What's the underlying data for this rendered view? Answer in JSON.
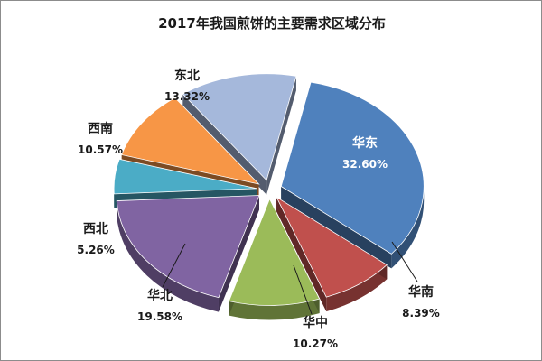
{
  "chart_data": {
    "type": "pie",
    "title": "2017年我国煎饼的主要需求区域分布",
    "slices": [
      {
        "name": "华东",
        "value": 32.6,
        "value_label": "32.60%",
        "color": "#4f81bd"
      },
      {
        "name": "华南",
        "value": 8.39,
        "value_label": "8.39%",
        "color": "#c0504d"
      },
      {
        "name": "华中",
        "value": 10.27,
        "value_label": "10.27%",
        "color": "#9bbb59"
      },
      {
        "name": "华北",
        "value": 19.58,
        "value_label": "19.58%",
        "color": "#8064a2"
      },
      {
        "name": "西北",
        "value": 5.26,
        "value_label": "5.26%",
        "color": "#4bacc6"
      },
      {
        "name": "西南",
        "value": 10.57,
        "value_label": "10.57%",
        "color": "#f79646"
      },
      {
        "name": "东北",
        "value": 13.32,
        "value_label": "13.32%",
        "color": "#a5b8db"
      }
    ],
    "legend": "none",
    "exploded": true,
    "style": "3d"
  }
}
